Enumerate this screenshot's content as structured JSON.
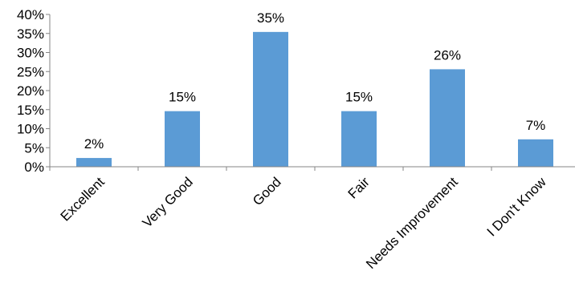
{
  "chart_data": {
    "type": "bar",
    "categories": [
      "Excellent",
      "Very Good",
      "Good",
      "Fair",
      "Needs Improvement",
      "I Don't Know"
    ],
    "values": [
      2,
      15,
      35,
      15,
      26,
      7
    ],
    "data_labels": [
      "2%",
      "15%",
      "35%",
      "15%",
      "26%",
      "7%"
    ],
    "value_scale": [
      2.3,
      14.6,
      35.4,
      14.6,
      25.6,
      7.2
    ],
    "ylim": [
      0,
      40
    ],
    "yticks": [
      0,
      5,
      10,
      15,
      20,
      25,
      30,
      35,
      40
    ],
    "ytick_labels": [
      "0%",
      "5%",
      "10%",
      "15%",
      "20%",
      "25%",
      "30%",
      "35%",
      "40%"
    ],
    "grid": false,
    "legend": "none",
    "colors": {
      "bar": "#5B9BD5",
      "axis": "#868686"
    }
  }
}
